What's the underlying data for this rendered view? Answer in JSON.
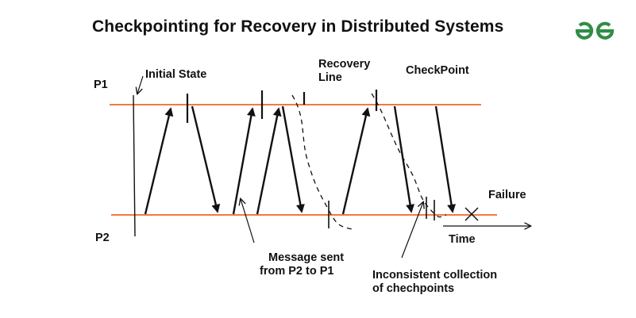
{
  "title": "Checkpointing for Recovery in Distributed Systems",
  "logo": {
    "icon": "geeksforgeeks-logo",
    "color": "#2f8d46"
  },
  "colors": {
    "process_line": "#f47a3c",
    "ink": "#111111"
  },
  "labels": {
    "p1": "P1",
    "p2": "P2",
    "initial_state": "Initial State",
    "recovery_line_1": "Recovery",
    "recovery_line_2": "Line",
    "checkpoint": "CheckPoint",
    "failure": "Failure",
    "time": "Time",
    "message_1": "Message sent",
    "message_2": "from P2 to P1",
    "inconsistent_1": "Inconsistent collection",
    "inconsistent_2": "of chechpoints"
  }
}
